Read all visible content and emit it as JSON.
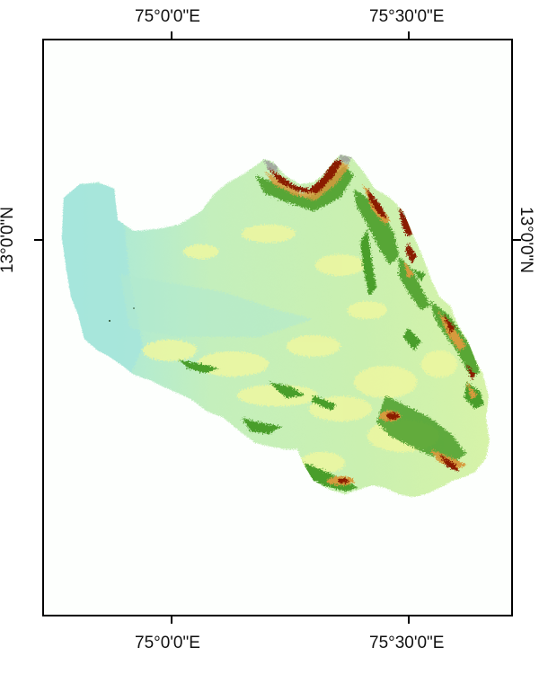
{
  "map": {
    "graticule_labels": {
      "lon_1": "75°0'0\"E",
      "lon_2": "75°30'0\"E",
      "lat_1": "13°0'0\"N"
    },
    "legend": null,
    "colors": {
      "lowland": "#a8e6d8",
      "plain": "#c8f0b4",
      "upland": "#eef7a0",
      "hill": "#4aa02a",
      "high": "#d8a040",
      "peak": "#8a1a06",
      "summit": "#9a9a9a"
    }
  }
}
